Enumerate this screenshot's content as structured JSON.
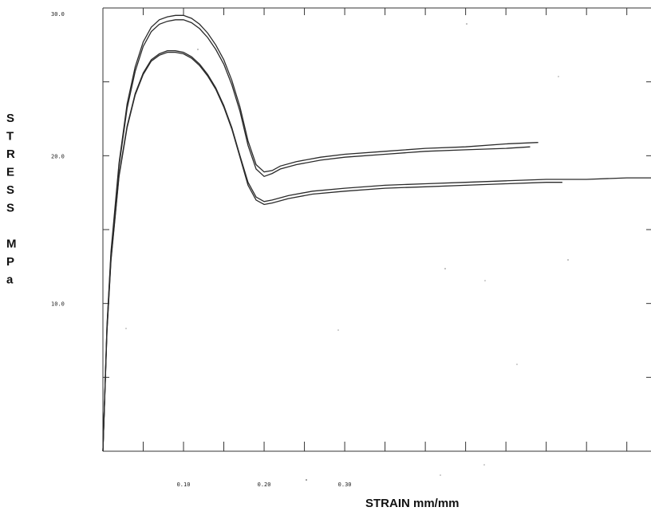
{
  "chart_data": {
    "type": "line",
    "title": "",
    "xlabel": "STRAIN mm/mm",
    "ylabel": "STRESS MPa",
    "ylabel_letters": [
      "S",
      "T",
      "R",
      "E",
      "S",
      "S",
      "",
      "M",
      "P",
      "a"
    ],
    "xlim": [
      0,
      0.68
    ],
    "ylim": [
      0,
      30
    ],
    "x_ticks": [
      0.1,
      0.2,
      0.3
    ],
    "x_tick_labels": [
      "0.10",
      "0.20",
      "0.30"
    ],
    "y_ticks": [
      10,
      20,
      30
    ],
    "y_tick_labels": [
      "10.0",
      "20.0",
      "30.0"
    ],
    "grid": false,
    "series": [
      {
        "x": [
          0,
          0.005,
          0.01,
          0.02,
          0.03,
          0.04,
          0.05,
          0.06,
          0.07,
          0.08,
          0.09,
          0.1,
          0.11,
          0.12,
          0.13,
          0.14,
          0.15,
          0.16,
          0.17,
          0.18,
          0.19,
          0.2,
          0.21,
          0.22,
          0.24,
          0.27,
          0.3,
          0.35,
          0.4,
          0.45,
          0.5,
          0.54
        ],
        "y": [
          0,
          8.5,
          13.5,
          19.5,
          23.5,
          26.0,
          27.7,
          28.7,
          29.2,
          29.4,
          29.5,
          29.5,
          29.3,
          28.9,
          28.3,
          27.5,
          26.5,
          25.1,
          23.3,
          21.0,
          19.4,
          18.9,
          19.0,
          19.3,
          19.6,
          19.9,
          20.1,
          20.3,
          20.5,
          20.6,
          20.8,
          20.9
        ]
      },
      {
        "x": [
          0,
          0.005,
          0.01,
          0.02,
          0.03,
          0.04,
          0.05,
          0.06,
          0.07,
          0.08,
          0.09,
          0.1,
          0.11,
          0.12,
          0.13,
          0.14,
          0.15,
          0.16,
          0.17,
          0.18,
          0.19,
          0.2,
          0.21,
          0.22,
          0.24,
          0.27,
          0.3,
          0.35,
          0.4,
          0.45,
          0.5,
          0.53
        ],
        "y": [
          0,
          8.4,
          13.3,
          19.3,
          23.2,
          25.7,
          27.4,
          28.4,
          28.9,
          29.1,
          29.2,
          29.2,
          29.0,
          28.6,
          28.0,
          27.2,
          26.2,
          24.8,
          23.0,
          20.7,
          19.1,
          18.6,
          18.8,
          19.1,
          19.4,
          19.7,
          19.9,
          20.1,
          20.3,
          20.4,
          20.5,
          20.6
        ]
      },
      {
        "x": [
          0,
          0.005,
          0.01,
          0.02,
          0.03,
          0.04,
          0.05,
          0.06,
          0.07,
          0.08,
          0.09,
          0.1,
          0.11,
          0.12,
          0.13,
          0.14,
          0.15,
          0.16,
          0.17,
          0.18,
          0.19,
          0.2,
          0.21,
          0.23,
          0.26,
          0.3,
          0.35,
          0.4,
          0.45,
          0.5,
          0.55,
          0.6,
          0.65,
          0.68
        ],
        "y": [
          0,
          8.2,
          13.0,
          18.7,
          22.0,
          24.2,
          25.6,
          26.5,
          26.9,
          27.1,
          27.1,
          27.0,
          26.7,
          26.2,
          25.5,
          24.6,
          23.4,
          21.9,
          20.0,
          18.2,
          17.2,
          16.9,
          17.0,
          17.3,
          17.6,
          17.8,
          18.0,
          18.1,
          18.2,
          18.3,
          18.4,
          18.4,
          18.5,
          18.5
        ]
      },
      {
        "x": [
          0,
          0.005,
          0.01,
          0.02,
          0.03,
          0.04,
          0.05,
          0.06,
          0.07,
          0.08,
          0.09,
          0.1,
          0.11,
          0.12,
          0.13,
          0.14,
          0.15,
          0.16,
          0.17,
          0.18,
          0.19,
          0.2,
          0.21,
          0.23,
          0.26,
          0.3,
          0.35,
          0.4,
          0.45,
          0.5,
          0.55,
          0.57
        ],
        "y": [
          0,
          8.1,
          12.9,
          18.6,
          21.9,
          24.1,
          25.5,
          26.4,
          26.8,
          27.0,
          27.0,
          26.9,
          26.6,
          26.1,
          25.4,
          24.5,
          23.3,
          21.8,
          19.9,
          18.0,
          17.0,
          16.7,
          16.8,
          17.1,
          17.4,
          17.6,
          17.8,
          17.9,
          18.0,
          18.1,
          18.2,
          18.2
        ]
      }
    ]
  }
}
